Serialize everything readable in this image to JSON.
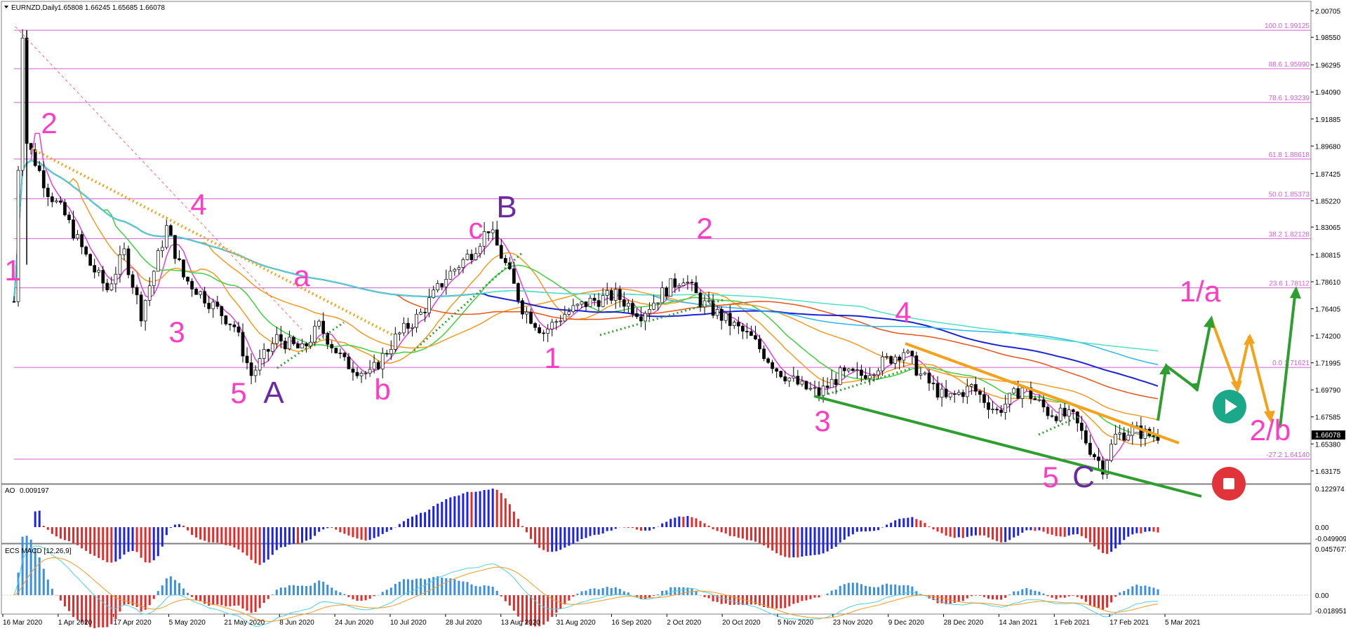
{
  "header": {
    "symbol_label": "EURNZD,Daily",
    "ohlc": "1.65808 1.66245 1.65685 1.66078"
  },
  "indicators": {
    "ao_label": "AO",
    "ao_value": "0.009197",
    "macd_label": "ECS MACD [12,26,9]"
  },
  "colors": {
    "up_candle": "#ffffff",
    "down_candle": "#000000",
    "wave_pink": "#ff3dc4",
    "wave_purple": "#6a2aa1",
    "fib_line": "#d35fd3",
    "ao_up": "#1c22e6",
    "ao_down": "#e52a2a",
    "macd_hist_up": "#3b8fe0",
    "macd_hist_down": "#e52a2a",
    "macd_signal": "#f49a22",
    "macd_line": "#4fd1e0",
    "trend_green": "#2e9e2e",
    "trend_orange": "#f4a21c",
    "price_badge": "#000000",
    "play_icon_bg": "#1aa889",
    "stop_icon_bg": "#e0343a"
  },
  "chart_data": {
    "type": "candlestick",
    "symbol": "EURNZD",
    "timeframe": "Daily",
    "last_price": 1.66078,
    "y_ticks": [
      2.00705,
      1.9855,
      1.96295,
      1.9409,
      1.91885,
      1.8968,
      1.87425,
      1.8522,
      1.83065,
      1.80815,
      1.7861,
      1.76405,
      1.742,
      1.71995,
      1.6979,
      1.67585,
      1.6538,
      1.63175
    ],
    "y_tick_labels": [
      "2.00705",
      "1.98550",
      "1.96295",
      "1.94090",
      "1.91885",
      "1.89680",
      "1.87425",
      "1.85220",
      "1.83065",
      "1.80815",
      "1.78610",
      "1.76405",
      "1.74200",
      "1.71995",
      "1.69790",
      "1.67585",
      "1.65380",
      "1.63175"
    ],
    "ylim": [
      1.6225,
      2.0125
    ],
    "x_tick_labels": [
      "16 Mar 2020",
      "1 Apr 2020",
      "17 Apr 2020",
      "5 May 2020",
      "21 May 2020",
      "8 Jun 2020",
      "24 Jun 2020",
      "10 Jul 2020",
      "28 Jul 2020",
      "13 Aug 2020",
      "31 Aug 2020",
      "16 Sep 2020",
      "2 Oct 2020",
      "20 Oct 2020",
      "5 Nov 2020",
      "23 Nov 2020",
      "9 Dec 2020",
      "28 Dec 2020",
      "14 Jan 2021",
      "1 Feb 2021",
      "17 Feb 2021",
      "5 Mar 2021"
    ],
    "fib_levels": [
      {
        "label": "100.0 1.99125",
        "price": 1.99125
      },
      {
        "label": "88.6 1.95990",
        "price": 1.9599
      },
      {
        "label": "78.6 1.93239",
        "price": 1.93239
      },
      {
        "label": "61.8 1.88618",
        "price": 1.88618
      },
      {
        "label": "50.0 1.85373",
        "price": 1.85373
      },
      {
        "label": "38.2 1.82128",
        "price": 1.82128
      },
      {
        "label": "23.6 1.78112",
        "price": 1.78112
      },
      {
        "label": "0.0 1.71621",
        "price": 1.71621
      },
      {
        "label": "-27.2 1.64140",
        "price": 1.6414
      }
    ],
    "path_points": [
      [
        0,
        1.77
      ],
      [
        2,
        1.99
      ],
      [
        3,
        1.9
      ],
      [
        8,
        1.86
      ],
      [
        12,
        1.84
      ],
      [
        18,
        1.8
      ],
      [
        22,
        1.78
      ],
      [
        26,
        1.81
      ],
      [
        30,
        1.76
      ],
      [
        36,
        1.83
      ],
      [
        40,
        1.79
      ],
      [
        46,
        1.77
      ],
      [
        52,
        1.75
      ],
      [
        56,
        1.71
      ],
      [
        62,
        1.74
      ],
      [
        68,
        1.73
      ],
      [
        72,
        1.75
      ],
      [
        78,
        1.72
      ],
      [
        84,
        1.71
      ],
      [
        90,
        1.74
      ],
      [
        96,
        1.76
      ],
      [
        102,
        1.79
      ],
      [
        108,
        1.81
      ],
      [
        112,
        1.83
      ],
      [
        116,
        1.8
      ],
      [
        120,
        1.765
      ],
      [
        125,
        1.745
      ],
      [
        130,
        1.76
      ],
      [
        136,
        1.77
      ],
      [
        142,
        1.775
      ],
      [
        148,
        1.76
      ],
      [
        154,
        1.78
      ],
      [
        158,
        1.79
      ],
      [
        162,
        1.77
      ],
      [
        168,
        1.755
      ],
      [
        174,
        1.74
      ],
      [
        180,
        1.715
      ],
      [
        186,
        1.7
      ],
      [
        190,
        1.695
      ],
      [
        195,
        1.71
      ],
      [
        200,
        1.71
      ],
      [
        205,
        1.72
      ],
      [
        210,
        1.73
      ],
      [
        214,
        1.71
      ],
      [
        220,
        1.69
      ],
      [
        226,
        1.7
      ],
      [
        232,
        1.68
      ],
      [
        238,
        1.7
      ],
      [
        244,
        1.68
      ],
      [
        250,
        1.675
      ],
      [
        254,
        1.65
      ],
      [
        257,
        1.635
      ],
      [
        260,
        1.66
      ],
      [
        264,
        1.665
      ],
      [
        268,
        1.661
      ]
    ],
    "wave_labels": [
      {
        "text": "1",
        "color": "pink"
      },
      {
        "text": "2",
        "color": "pink"
      },
      {
        "text": "3",
        "color": "pink"
      },
      {
        "text": "4",
        "color": "pink"
      },
      {
        "text": "5",
        "color": "pink"
      },
      {
        "text": "A",
        "color": "purple"
      },
      {
        "text": "a",
        "color": "pink"
      },
      {
        "text": "b",
        "color": "pink"
      },
      {
        "text": "c",
        "color": "pink"
      },
      {
        "text": "B",
        "color": "purple"
      },
      {
        "text": "1",
        "color": "pink"
      },
      {
        "text": "2",
        "color": "pink"
      },
      {
        "text": "3",
        "color": "pink"
      },
      {
        "text": "4",
        "color": "pink"
      },
      {
        "text": "5",
        "color": "pink"
      },
      {
        "text": "C",
        "color": "purple"
      },
      {
        "text": "1/a",
        "color": "pink"
      },
      {
        "text": "2/b",
        "color": "pink"
      }
    ],
    "ao_ticks": [
      "0.122974",
      "0.00",
      "-0.049909"
    ],
    "macd_ticks": [
      "0.0457677",
      "0.00",
      "-0.018951"
    ],
    "grid": false
  }
}
